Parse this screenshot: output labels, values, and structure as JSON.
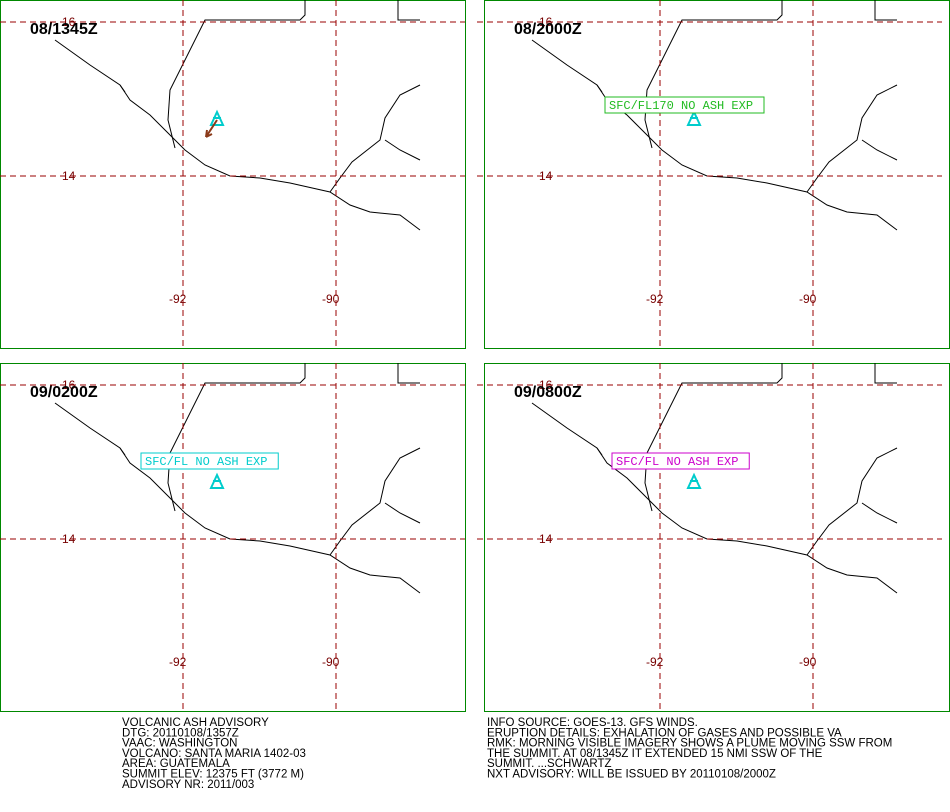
{
  "grid": {
    "lat": [
      "16",
      "14"
    ],
    "lon": [
      "-92",
      "-90"
    ]
  },
  "panels": [
    {
      "time": "08/1345Z"
    },
    {
      "time": "08/2000Z",
      "label": "SFC/FL170 NO ASH EXP",
      "label_color": "#22bb22"
    },
    {
      "time": "09/0200Z",
      "label": "SFC/FL NO ASH EXP",
      "label_color": "#00cccc"
    },
    {
      "time": "09/0800Z",
      "label": "SFC/FL NO ASH EXP",
      "label_color": "#cc00cc"
    }
  ],
  "advisory": [
    "VOLCANIC ASH ADVISORY",
    "DTG: 20110108/1357Z",
    "VAAC: WASHINGTON",
    "VOLCANO: SANTA MARIA 1402-03",
    "AREA: GUATEMALA",
    "SUMMIT ELEV: 12375 FT (3772 M)",
    "ADVISORY NR: 2011/003"
  ],
  "remarks": [
    "INFO SOURCE: GOES-13. GFS WINDS.",
    "ERUPTION DETAILS: EXHALATION OF GASES AND POSSIBLE VA",
    "RMK: MORNING VISIBLE IMAGERY SHOWS A PLUME MOVING SSW FROM",
    "THE SUMMIT. AT 08/1345Z IT EXTENDED 15 NMI SSW OF THE",
    "SUMMIT. ...SCHWARTZ",
    "NXT ADVISORY: WILL BE ISSUED BY 20110108/2000Z"
  ]
}
